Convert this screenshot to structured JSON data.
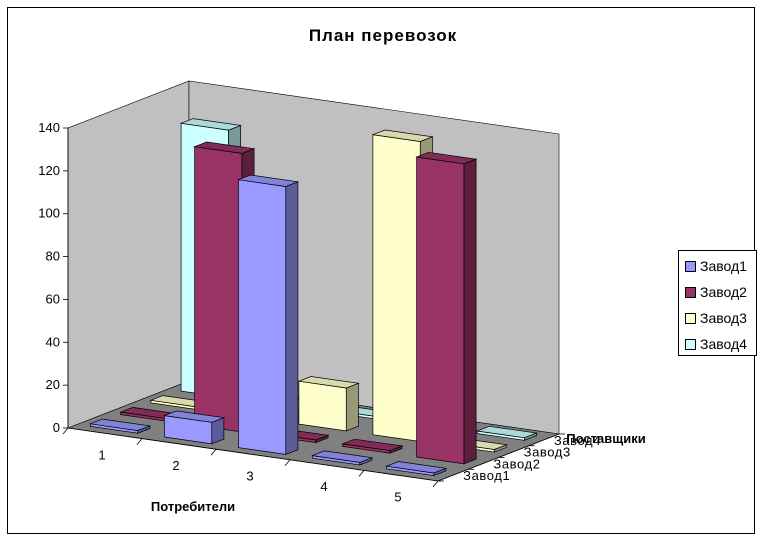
{
  "chart_data": {
    "type": "bar",
    "subtype": "3d-column",
    "title": "План перевозок",
    "xlabel": "Потребители",
    "zlabel": "Поставщики",
    "ylabel": "",
    "ylim": [
      0,
      140
    ],
    "yticks": [
      0,
      20,
      40,
      60,
      80,
      100,
      120,
      140
    ],
    "categories": [
      "1",
      "2",
      "3",
      "4",
      "5"
    ],
    "series": [
      {
        "name": "Завод1",
        "color": "#9999ff",
        "values": [
          0,
          10,
          125,
          0,
          0
        ]
      },
      {
        "name": "Завод2",
        "color": "#993366",
        "values": [
          0,
          130,
          0,
          0,
          140
        ]
      },
      {
        "name": "Завод3",
        "color": "#ffffcc",
        "values": [
          0,
          0,
          20,
          140,
          0
        ]
      },
      {
        "name": "Завод4",
        "color": "#ccffff",
        "values": [
          125,
          0,
          0,
          0,
          0
        ]
      }
    ],
    "legend_position": "right",
    "grid": false,
    "wall_color": "#c0c0c0",
    "floor_color": "#808080"
  }
}
